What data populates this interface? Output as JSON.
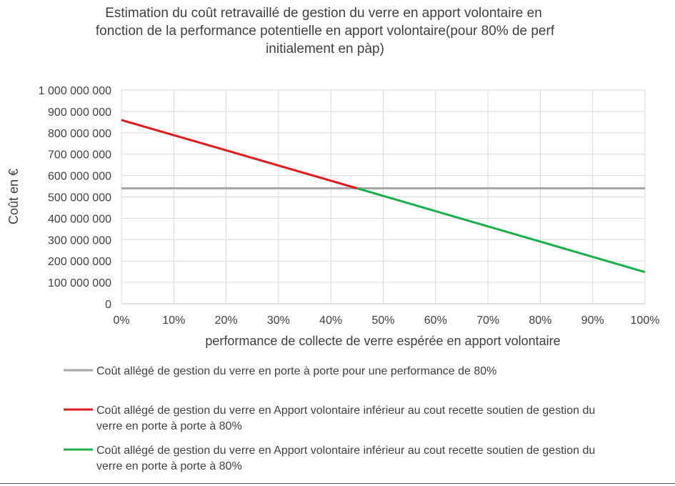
{
  "chart_data": {
    "type": "line",
    "title_lines": [
      "Estimation du coût retravaillé  de gestion du verre en apport volontaire en",
      "fonction de la performance potentielle  en apport volontaire(pour 80% de perf",
      "initialement  en pàp)"
    ],
    "xlabel": "performance de collecte de verre espérée en apport volontaire",
    "ylabel": "Coût en €",
    "x_ticks": [
      "0%",
      "10%",
      "20%",
      "30%",
      "40%",
      "50%",
      "60%",
      "70%",
      "80%",
      "90%",
      "100%"
    ],
    "y_ticks": [
      "0",
      "100 000 000",
      "200 000 000",
      "300 000 000",
      "400 000 000",
      "500 000 000",
      "600 000 000",
      "700 000 000",
      "800 000 000",
      "900 000 000",
      "1 000 000 000"
    ],
    "xlim": [
      0,
      1
    ],
    "ylim": [
      0,
      1000000000
    ],
    "grid": true,
    "legend_position": "bottom",
    "series": [
      {
        "color": "#a6a6a6",
        "legend": "Coût allégé de gestion du verre en porte à porte pour une performance de 80%",
        "x": [
          0,
          1
        ],
        "y": [
          540000000,
          540000000
        ]
      },
      {
        "color": "#e31a1c",
        "legend": "Coût allégé de gestion du verre en Apport volontaire inférieur au cout recette soutien de gestion du verre en porte à porte à 80%",
        "x": [
          0,
          0.45
        ],
        "y": [
          860000000,
          540000000
        ]
      },
      {
        "color": "#18b04a",
        "legend": "Coût allégé de gestion du verre en Apport volontaire inférieur au cout recette soutien de gestion du verre en porte à porte à 80%",
        "x": [
          0.45,
          1
        ],
        "y": [
          540000000,
          148000000
        ]
      }
    ]
  }
}
